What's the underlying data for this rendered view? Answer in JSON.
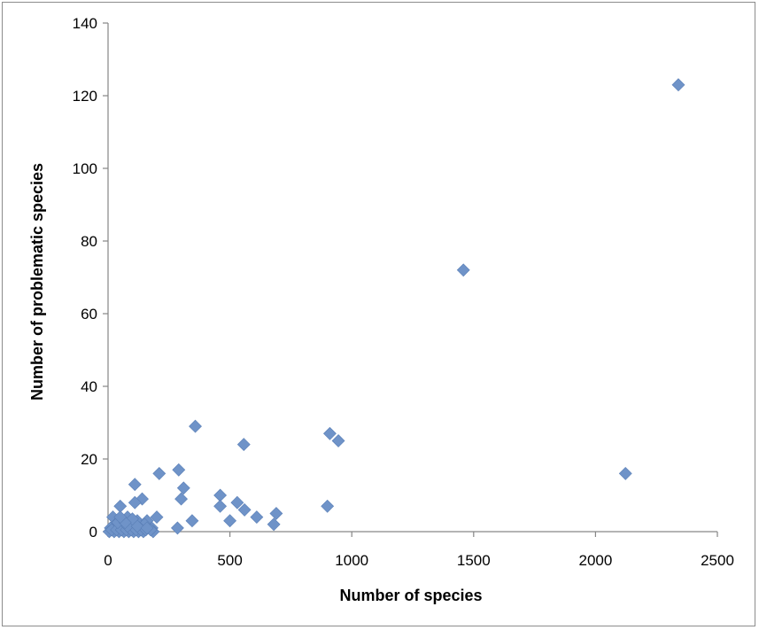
{
  "chart_data": {
    "type": "scatter",
    "title": "",
    "xlabel": "Number of species",
    "ylabel": "Number of problematic species",
    "xlim": [
      0,
      2500
    ],
    "ylim": [
      0,
      140
    ],
    "x_ticks": [
      0,
      500,
      1000,
      1500,
      2000,
      2500
    ],
    "y_ticks": [
      0,
      20,
      40,
      60,
      80,
      100,
      120,
      140
    ],
    "grid": false,
    "legend": "none",
    "marker": "diamond",
    "marker_color": "#6f93c8",
    "series": [
      {
        "points": [
          [
            2340,
            123
          ],
          [
            1458,
            72
          ],
          [
            2123,
            16
          ],
          [
            358,
            29
          ],
          [
            910,
            27
          ],
          [
            945,
            25
          ],
          [
            557,
            24
          ],
          [
            290,
            17
          ],
          [
            210,
            16
          ],
          [
            110,
            13
          ],
          [
            310,
            12
          ],
          [
            460,
            10
          ],
          [
            300,
            9
          ],
          [
            140,
            9
          ],
          [
            530,
            8
          ],
          [
            110,
            8
          ],
          [
            900,
            7
          ],
          [
            460,
            7
          ],
          [
            50,
            7
          ],
          [
            560,
            6
          ],
          [
            690,
            5
          ],
          [
            610,
            4
          ],
          [
            200,
            4
          ],
          [
            20,
            4
          ],
          [
            80,
            4
          ],
          [
            345,
            3
          ],
          [
            500,
            3
          ],
          [
            120,
            3
          ],
          [
            60,
            3
          ],
          [
            160,
            3
          ],
          [
            680,
            2
          ],
          [
            90,
            2
          ],
          [
            30,
            2
          ],
          [
            150,
            2
          ],
          [
            100,
            2
          ],
          [
            285,
            1
          ],
          [
            10,
            1
          ],
          [
            40,
            1
          ],
          [
            70,
            1
          ],
          [
            130,
            1
          ],
          [
            180,
            1
          ],
          [
            60,
            1.5
          ],
          [
            5,
            0
          ],
          [
            25,
            0
          ],
          [
            45,
            0
          ],
          [
            65,
            0
          ],
          [
            85,
            0
          ],
          [
            105,
            0
          ],
          [
            125,
            0
          ],
          [
            145,
            0
          ],
          [
            185,
            0
          ],
          [
            15,
            0.5
          ],
          [
            35,
            0.5
          ],
          [
            55,
            0.5
          ],
          [
            75,
            0.5
          ],
          [
            95,
            0.5
          ],
          [
            115,
            0.5
          ],
          [
            135,
            0.5
          ],
          [
            155,
            0.5
          ],
          [
            175,
            0.5
          ],
          [
            40,
            2.5
          ],
          [
            80,
            1.5
          ],
          [
            120,
            1.5
          ],
          [
            100,
            3.5
          ],
          [
            70,
            2.5
          ],
          [
            50,
            4
          ],
          [
            160,
            1
          ]
        ]
      }
    ]
  }
}
